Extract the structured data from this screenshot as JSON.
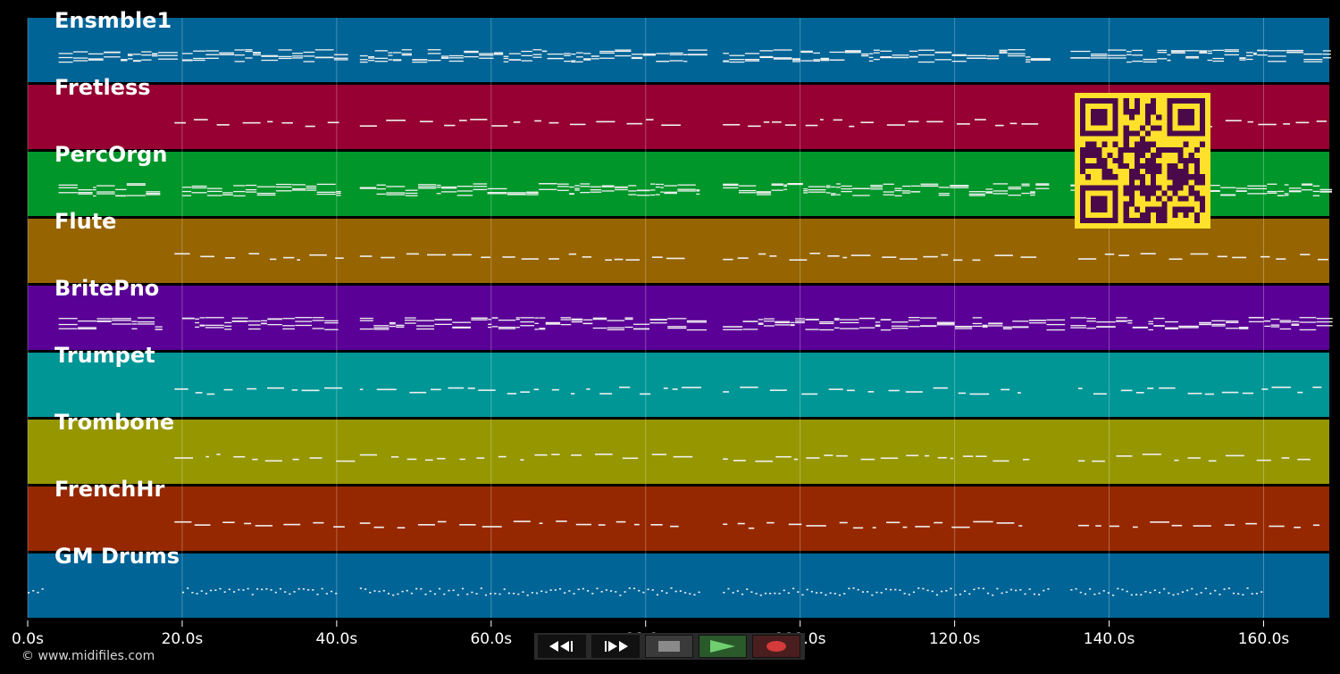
{
  "tracks": [
    {
      "name": "Ensmble1",
      "color": "#006496",
      "density": "dense"
    },
    {
      "name": "Fretless",
      "color": "#960032",
      "density": "sparse"
    },
    {
      "name": "PercOrgn",
      "color": "#00962a",
      "density": "dense"
    },
    {
      "name": "Flute",
      "color": "#966400",
      "density": "sparse"
    },
    {
      "name": "BritePno",
      "color": "#5a0096",
      "density": "dense"
    },
    {
      "name": "Trumpet",
      "color": "#009696",
      "density": "sparse"
    },
    {
      "name": "Trombone",
      "color": "#969600",
      "density": "sparse"
    },
    {
      "name": "FrenchHr",
      "color": "#962800",
      "density": "sparse"
    },
    {
      "name": "GM Drums",
      "color": "#006496",
      "density": "dotted"
    }
  ],
  "axis": {
    "ticks": [
      "0.0s",
      "20.0s",
      "40.0s",
      "60.0s",
      "80.0s",
      "100.0s",
      "120.0s",
      "140.0s",
      "160.0s"
    ],
    "tick_values": [
      0,
      20,
      40,
      60,
      80,
      100,
      120,
      140,
      160
    ],
    "max_seconds": 168.5
  },
  "transport": {
    "rewind_icon": "rewind-icon",
    "fast_forward_icon": "fast-forward-icon",
    "stop_icon": "stop-icon",
    "play_icon": "play-icon",
    "record_icon": "record-icon"
  },
  "qr_code": {
    "foreground": "#4a0a4a",
    "background": "#ffe02a"
  },
  "footer": {
    "copyright": "© www.midifiles.com"
  }
}
